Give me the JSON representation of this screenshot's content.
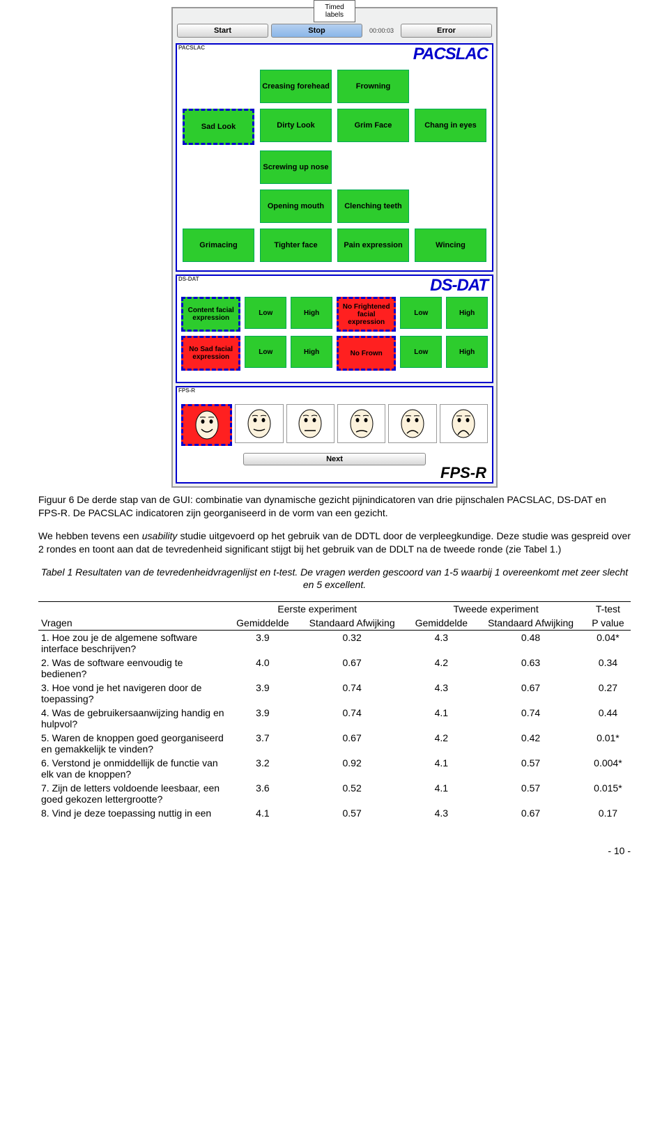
{
  "gui": {
    "tab": "Timed labels",
    "buttons": {
      "start": "Start",
      "stop": "Stop",
      "error": "Error",
      "timer": "00:00:03",
      "next": "Next"
    },
    "panel1": {
      "tag": "PACSLAC",
      "title": "PACSLAC"
    },
    "panel2": {
      "tag": "DS-DAT",
      "title": "DS-DAT"
    },
    "panel3": {
      "tag": "FPS-R",
      "title": "FPS-R"
    },
    "grid": [
      [
        null,
        "Creasing forehead",
        "Frowning",
        null
      ],
      [
        "Sad Look",
        "Dirty Look",
        "Grim Face",
        "Chang in eyes"
      ],
      [
        null,
        "Screwing up nose",
        null,
        null
      ],
      [
        null,
        "Opening mouth",
        "Clenching teeth",
        null
      ],
      [
        "Grimacing",
        "Tighter face",
        "Pain expression",
        "Wincing"
      ]
    ],
    "dsdat_rows": [
      [
        {
          "t": "Content facial expression",
          "big": true,
          "red": false
        },
        {
          "t": "Low",
          "sm": true
        },
        {
          "t": "High",
          "sm": true
        },
        {
          "t": "No Frightened facial expression",
          "big": true,
          "red": true
        },
        {
          "t": "Low",
          "sm": true
        },
        {
          "t": "High",
          "sm": true
        }
      ],
      [
        {
          "t": "No Sad facial expression",
          "big": true,
          "red": true
        },
        {
          "t": "Low",
          "sm": true
        },
        {
          "t": "High",
          "sm": true
        },
        {
          "t": "No Frown",
          "big": true,
          "red": true
        },
        {
          "t": "Low",
          "sm": true
        },
        {
          "t": "High",
          "sm": true
        }
      ]
    ]
  },
  "caption": "Figuur 6 De derde stap van de GUI: combinatie van dynamische gezicht pijnindicatoren van drie pijnschalen PACSLAC, DS-DAT en FPS-R. De PACSLAC indicatoren zijn georganiseerd in de vorm van een gezicht.",
  "body": "We hebben tevens een <em>usability</em> studie uitgevoerd op het gebruik van de DDTL door de verpleegkundige. Deze studie was gespreid over 2 rondes en toont aan dat de tevredenheid significant stijgt bij het gebruik van de DDLT na de tweede ronde (zie Tabel 1.)",
  "table_caption": "Tabel 1 Resultaten van de tevredenheidvragenlijst en t-test. De vragen werden gescoord van 1-5 waarbij 1 overeenkomt met zeer slecht en 5 excellent.",
  "table": {
    "group_headers": [
      "",
      "Eerste experiment",
      "Tweede experiment",
      "T-test"
    ],
    "sub_headers": [
      "Vragen",
      "Gemiddelde",
      "Standaard Afwijking",
      "Gemiddelde",
      "Standaard Afwijking",
      "P value"
    ],
    "rows": [
      [
        "1. Hoe zou je de algemene software interface beschrijven?",
        "3.9",
        "0.32",
        "4.3",
        "0.48",
        "0.04*"
      ],
      [
        "2. Was de software eenvoudig te bedienen?",
        "4.0",
        "0.67",
        "4.2",
        "0.63",
        "0.34"
      ],
      [
        "3. Hoe vond je het navigeren door de toepassing?",
        "3.9",
        "0.74",
        "4.3",
        "0.67",
        "0.27"
      ],
      [
        "4. Was de gebruikersaanwijzing handig en hulpvol?",
        "3.9",
        "0.74",
        "4.1",
        "0.74",
        "0.44"
      ],
      [
        "5. Waren de knoppen goed georganiseerd en gemakkelijk te vinden?",
        "3.7",
        "0.67",
        "4.2",
        "0.42",
        "0.01*"
      ],
      [
        "6. Verstond je onmiddellijk de functie van elk van de knoppen?",
        "3.2",
        "0.92",
        "4.1",
        "0.57",
        "0.004*"
      ],
      [
        "7. Zijn de letters voldoende leesbaar, een goed gekozen lettergrootte?",
        "3.6",
        "0.52",
        "4.1",
        "0.57",
        "0.015*"
      ],
      [
        "8. Vind je deze toepassing nuttig in een",
        "4.1",
        "0.57",
        "4.3",
        "0.67",
        "0.17"
      ]
    ]
  },
  "pagenum": "- 10 -"
}
